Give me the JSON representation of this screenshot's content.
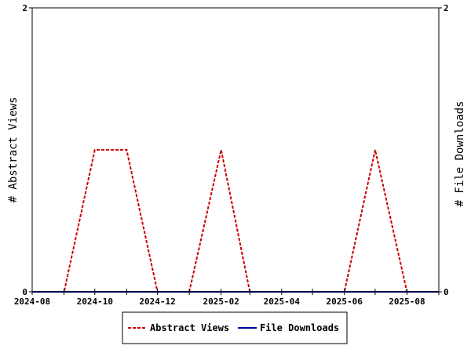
{
  "chart_data": {
    "type": "line",
    "y_left_label": "# Abstract Views",
    "y_right_label": "# File Downloads",
    "x_range": [
      "2024-08-01",
      "2025-09-01"
    ],
    "x_tick_labels": [
      "2024-08",
      "2024-10",
      "2024-12",
      "2025-02",
      "2025-04",
      "2025-06",
      "2025-08"
    ],
    "x_tick_dates": [
      "2024-08-01",
      "2024-10-01",
      "2024-12-01",
      "2025-02-01",
      "2025-04-01",
      "2025-06-01",
      "2025-08-01"
    ],
    "y_left_range": [
      0,
      2
    ],
    "y_right_range": [
      0,
      2
    ],
    "y_left_ticks": [
      "0",
      "2"
    ],
    "y_right_ticks": [
      "0",
      "2"
    ],
    "grid": false,
    "legend_position": "bottom",
    "series": [
      {
        "name": "Abstract Views",
        "color": "#cc0000",
        "dash": "dashed",
        "axis": "left",
        "points": [
          [
            "2024-08-01",
            0
          ],
          [
            "2024-09-01",
            0
          ],
          [
            "2024-10-01",
            1
          ],
          [
            "2024-11-01",
            1
          ],
          [
            "2024-12-01",
            0
          ],
          [
            "2025-01-01",
            0
          ],
          [
            "2025-02-01",
            1
          ],
          [
            "2025-03-01",
            0
          ],
          [
            "2025-04-01",
            0
          ],
          [
            "2025-05-01",
            0
          ],
          [
            "2025-06-01",
            0
          ],
          [
            "2025-07-01",
            1
          ],
          [
            "2025-08-01",
            0
          ],
          [
            "2025-09-01",
            0
          ]
        ]
      },
      {
        "name": "File Downloads",
        "color": "#000099",
        "dash": "solid",
        "axis": "right",
        "points": [
          [
            "2024-08-01",
            0
          ],
          [
            "2024-09-01",
            0
          ],
          [
            "2024-10-01",
            0
          ],
          [
            "2024-11-01",
            0
          ],
          [
            "2024-12-01",
            0
          ],
          [
            "2025-01-01",
            0
          ],
          [
            "2025-02-01",
            0
          ],
          [
            "2025-03-01",
            0
          ],
          [
            "2025-04-01",
            0
          ],
          [
            "2025-05-01",
            0
          ],
          [
            "2025-06-01",
            0
          ],
          [
            "2025-07-01",
            0
          ],
          [
            "2025-08-01",
            0
          ],
          [
            "2025-09-01",
            0
          ]
        ]
      }
    ]
  }
}
